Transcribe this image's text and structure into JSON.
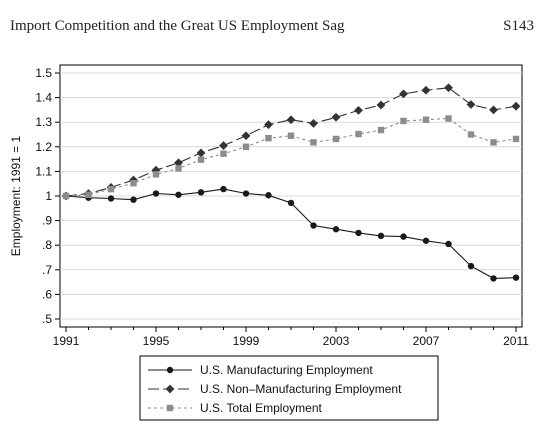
{
  "header": {
    "running_title": "Import Competition and the Great US Employment Sag",
    "page_number": "S143"
  },
  "chart_data": {
    "type": "line",
    "title": "",
    "xlabel": "",
    "ylabel": "Employment: 1991 = 1",
    "x": [
      1991,
      1992,
      1993,
      1994,
      1995,
      1996,
      1997,
      1998,
      1999,
      2000,
      2001,
      2002,
      2003,
      2004,
      2005,
      2006,
      2007,
      2008,
      2009,
      2010,
      2011
    ],
    "xticks": [
      1991,
      1995,
      1999,
      2003,
      2007,
      2011
    ],
    "xtick_labels": [
      "1991",
      "1995",
      "1999",
      "2003",
      "2007",
      "2011"
    ],
    "yticks": [
      0.5,
      0.6,
      0.7,
      0.8,
      0.9,
      1.0,
      1.1,
      1.2,
      1.3,
      1.4,
      1.5
    ],
    "ytick_labels": [
      ".5",
      ".6",
      ".7",
      ".8",
      ".9",
      "1",
      "1.1",
      "1.2",
      "1.3",
      "1.4",
      "1.5"
    ],
    "xlim": [
      1991,
      2011
    ],
    "ylim": [
      0.5,
      1.5
    ],
    "grid": true,
    "legend_position": "bottom",
    "series": [
      {
        "name": "U.S. Manufacturing Employment",
        "color": "#1a1a1a",
        "marker": "circle",
        "dash": "solid",
        "values": [
          1.0,
          0.993,
          0.99,
          0.985,
          1.01,
          1.005,
          1.015,
          1.028,
          1.01,
          1.003,
          0.972,
          0.88,
          0.865,
          0.85,
          0.838,
          0.835,
          0.818,
          0.805,
          0.715,
          0.665,
          0.668
        ]
      },
      {
        "name": "U.S. Non–Manufacturing Employment",
        "color": "#333333",
        "marker": "diamond",
        "dash": "longdash",
        "values": [
          1.0,
          1.01,
          1.035,
          1.065,
          1.105,
          1.135,
          1.175,
          1.205,
          1.245,
          1.29,
          1.31,
          1.295,
          1.32,
          1.348,
          1.37,
          1.415,
          1.43,
          1.44,
          1.372,
          1.35,
          1.365
        ]
      },
      {
        "name": "U.S. Total Employment",
        "color": "#8c8c8c",
        "marker": "square",
        "dash": "shortdash",
        "values": [
          1.0,
          1.005,
          1.028,
          1.052,
          1.088,
          1.112,
          1.148,
          1.172,
          1.2,
          1.235,
          1.245,
          1.218,
          1.232,
          1.252,
          1.268,
          1.305,
          1.31,
          1.315,
          1.25,
          1.218,
          1.232
        ]
      }
    ]
  }
}
